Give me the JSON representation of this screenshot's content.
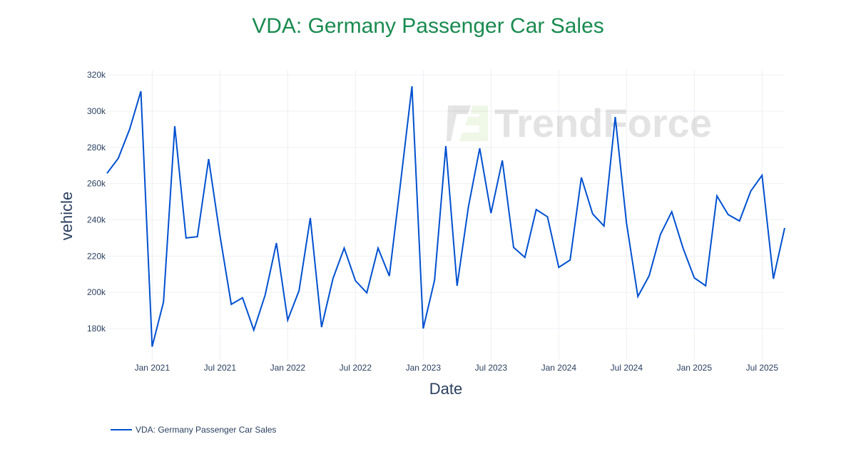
{
  "watermark": "TrendForce",
  "chart_data": {
    "type": "line",
    "title": "VDA: Germany Passenger Car Sales",
    "xlabel": "Date",
    "ylabel": "vehicle",
    "color": "#0050d0",
    "title_color": "#1a8a50",
    "ylim": [
      162700,
      322800
    ],
    "grid": true,
    "legend_position": "bottom-left",
    "x_ticks": [
      "Jan 2021",
      "Jul 2021",
      "Jan 2022",
      "Jul 2022",
      "Jan 2023",
      "Jul 2023",
      "Jan 2024",
      "Jul 2024",
      "Jan 2025",
      "Jul 2025"
    ],
    "y_ticks": [
      "180k",
      "200k",
      "220k",
      "240k",
      "260k",
      "280k",
      "300k",
      "320k"
    ],
    "y_tick_values": [
      180000,
      200000,
      220000,
      240000,
      260000,
      280000,
      300000,
      320000
    ],
    "x_start": "2020-09",
    "x_end": "2025-09",
    "series": [
      {
        "name": "VDA: Germany Passenger Car Sales",
        "x": [
          "2020-09",
          "2020-10",
          "2020-11",
          "2020-12",
          "2021-01",
          "2021-02",
          "2021-03",
          "2021-04",
          "2021-05",
          "2021-06",
          "2021-07",
          "2021-08",
          "2021-09",
          "2021-10",
          "2021-11",
          "2021-12",
          "2022-01",
          "2022-02",
          "2022-03",
          "2022-04",
          "2022-05",
          "2022-06",
          "2022-07",
          "2022-08",
          "2022-09",
          "2022-10",
          "2022-11",
          "2022-12",
          "2023-01",
          "2023-02",
          "2023-03",
          "2023-04",
          "2023-05",
          "2023-06",
          "2023-07",
          "2023-08",
          "2023-09",
          "2023-10",
          "2023-11",
          "2023-12",
          "2024-01",
          "2024-02",
          "2024-03",
          "2024-04",
          "2024-05",
          "2024-06",
          "2024-07",
          "2024-08",
          "2024-09",
          "2024-10",
          "2024-11",
          "2024-12",
          "2025-01",
          "2025-02",
          "2025-03",
          "2025-04",
          "2025-05",
          "2025-06",
          "2025-07",
          "2025-08",
          "2025-09"
        ],
        "values": [
          265700,
          274000,
          290000,
          311000,
          170000,
          194600,
          291700,
          230000,
          230700,
          273600,
          231500,
          193400,
          197000,
          179200,
          198500,
          227200,
          184700,
          200900,
          241000,
          180800,
          207500,
          224400,
          206400,
          199700,
          224400,
          209000,
          261000,
          313700,
          180000,
          206700,
          280700,
          203600,
          247300,
          279500,
          243700,
          272800,
          224800,
          219300,
          245700,
          241700,
          213800,
          217800,
          263400,
          243300,
          236600,
          296800,
          238200,
          197700,
          209100,
          231900,
          244500,
          224400,
          208000,
          203600,
          253200,
          242900,
          239400,
          255900,
          264600,
          207500,
          235500
        ]
      }
    ]
  }
}
